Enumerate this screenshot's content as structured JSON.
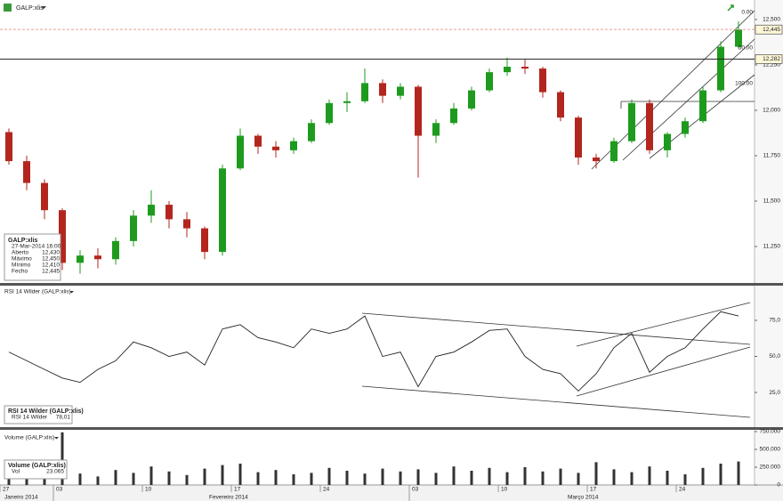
{
  "header": {
    "title": "GALP:xlis"
  },
  "chart_data": [
    {
      "type": "candlestick",
      "info": {
        "title": "GALP:xlis",
        "date": "27-Mar-2014 16:00",
        "rows": [
          {
            "label": "Aberto",
            "value": "12,430"
          },
          {
            "label": "Máximo",
            "value": "12,450"
          },
          {
            "label": "Mínimo",
            "value": "12,410"
          },
          {
            "label": "Fecho",
            "value": "12,445"
          }
        ]
      },
      "open": [
        11880,
        11720,
        11600,
        11450,
        11160,
        11200,
        11180,
        11280,
        11420,
        11480,
        11400,
        11350,
        11220,
        11680,
        11860,
        11800,
        11780,
        11830,
        11930,
        12040,
        12050,
        12150,
        12080,
        12130,
        11860,
        11930,
        12010,
        12110,
        12210,
        12240,
        12230,
        12100,
        11960,
        11740,
        11720,
        11830,
        12040,
        11780,
        11870,
        11940,
        12110,
        12350
      ],
      "high": [
        11900,
        11750,
        11620,
        11460,
        11230,
        11240,
        11300,
        11450,
        11560,
        11500,
        11440,
        11360,
        11700,
        11900,
        11870,
        11830,
        11850,
        11950,
        12060,
        12100,
        12230,
        12170,
        12150,
        12140,
        11950,
        12040,
        12130,
        12230,
        12290,
        12280,
        12240,
        12110,
        11970,
        11760,
        11850,
        12060,
        12060,
        11880,
        11960,
        12130,
        12380,
        12490
      ],
      "low": [
        11700,
        11560,
        11400,
        11120,
        11100,
        11130,
        11150,
        11250,
        11380,
        11350,
        11300,
        11180,
        11200,
        11670,
        11760,
        11740,
        11760,
        11820,
        11920,
        11990,
        12040,
        12040,
        12060,
        11630,
        11820,
        11920,
        12000,
        12100,
        12190,
        12200,
        12070,
        11940,
        11700,
        11680,
        11710,
        11820,
        11760,
        11740,
        11850,
        11930,
        12100,
        12340
      ],
      "close": [
        11720,
        11600,
        11450,
        11160,
        11200,
        11180,
        11280,
        11420,
        11480,
        11400,
        11350,
        11220,
        11680,
        11860,
        11800,
        11780,
        11830,
        11930,
        12040,
        12050,
        12150,
        12080,
        12130,
        11860,
        11930,
        12010,
        12110,
        12210,
        12240,
        12230,
        12100,
        11960,
        11740,
        11720,
        11830,
        12040,
        11780,
        11870,
        11940,
        12110,
        12350,
        12445
      ],
      "up_color": "#1e9b1e",
      "down_color": "#b3261e",
      "ylim": [
        11049,
        12539
      ],
      "yticks": [
        {
          "value": 11250,
          "label": "11,250"
        },
        {
          "value": 11500,
          "label": "11,500"
        },
        {
          "value": 11750,
          "label": "11,750"
        },
        {
          "value": 12000,
          "label": "12,000"
        },
        {
          "value": 12250,
          "label": "12,250"
        },
        {
          "value": 12500,
          "label": "12,500"
        }
      ],
      "price_lines": [
        {
          "value": 12445,
          "label": "12,445",
          "color": "#e8a090"
        },
        {
          "value": 12282,
          "label": "12,282",
          "color": "#222222"
        }
      ],
      "annotations": [
        "0.00",
        "50.00",
        "100.00"
      ]
    },
    {
      "type": "line",
      "title": "RSI 14 Wilder (GALP:xlis)",
      "info": {
        "title": "RSI 14 Wilder (GALP:xlis)",
        "rows": [
          {
            "label": "RSI 14 Wilder",
            "value": "78,01"
          }
        ]
      },
      "values": [
        53,
        47,
        41,
        35,
        32,
        41,
        47,
        60,
        56,
        50,
        53,
        44,
        69,
        72,
        63,
        60,
        56,
        69,
        66,
        69,
        78,
        50,
        53,
        29,
        50,
        53,
        60,
        68,
        69,
        50,
        41,
        38,
        26,
        38,
        56,
        66,
        39,
        50,
        56,
        69,
        81,
        78
      ],
      "color": "#222222",
      "ylim": [
        2.2,
        97.2
      ],
      "yticks": [
        {
          "value": 25,
          "label": "25,0"
        },
        {
          "value": 50,
          "label": "50,0"
        },
        {
          "value": 75,
          "label": "75,0"
        }
      ]
    },
    {
      "type": "bar",
      "title": "Volume (GALP:xlis)",
      "info": {
        "title": "Volume (GALP:xlis)",
        "rows": [
          {
            "label": "Vol",
            "value": "23.065"
          }
        ]
      },
      "categories": [
        "27",
        null,
        null,
        "03",
        null,
        null,
        null,
        null,
        "10",
        null,
        null,
        null,
        null,
        "17",
        null,
        null,
        null,
        null,
        "24",
        null,
        null,
        null,
        null,
        "03",
        null,
        null,
        null,
        null,
        "10",
        null,
        null,
        null,
        null,
        "17",
        null,
        null,
        null,
        null,
        "24",
        null,
        null,
        null
      ],
      "month_labels": [
        "Janeiro 2014",
        "Fevereiro 2014",
        "Março 2014"
      ],
      "values": [
        180000,
        150000,
        200000,
        740000,
        160000,
        120000,
        210000,
        170000,
        260000,
        190000,
        140000,
        230000,
        280000,
        300000,
        180000,
        210000,
        150000,
        170000,
        240000,
        200000,
        160000,
        230000,
        190000,
        220000,
        170000,
        260000,
        200000,
        240000,
        180000,
        250000,
        190000,
        230000,
        170000,
        320000,
        220000,
        180000,
        260000,
        200000,
        150000,
        240000,
        300000,
        330000
      ],
      "color": "#333333",
      "ylim": [
        0,
        750000
      ],
      "yticks": [
        0,
        {
          "value": 250000,
          "label": "250.000"
        },
        {
          "value": 500000,
          "label": "500.000"
        },
        {
          "value": 750000,
          "label": "750.000"
        }
      ]
    }
  ]
}
